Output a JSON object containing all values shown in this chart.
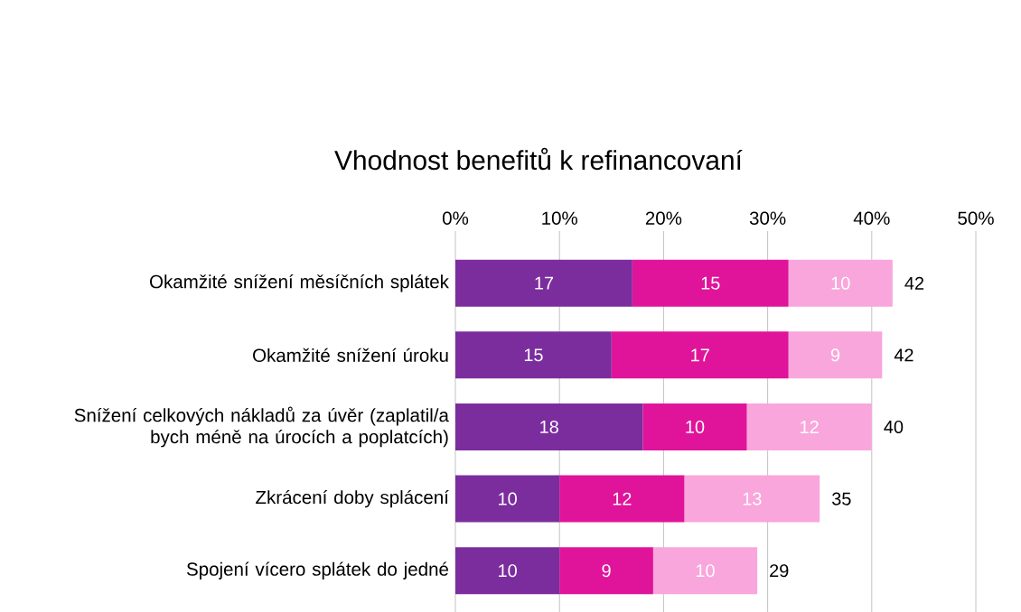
{
  "chart_data": {
    "type": "bar",
    "orientation": "horizontal",
    "stacked": true,
    "title": "Vhodnost benefitů k refinancovaní",
    "categories": [
      "Okamžité snížení měsíčních splátek",
      "Okamžité snížení úroku",
      "Snížení celkových nákladů za úvěr (zaplatil/a bych méně na úrocích a poplatcích)",
      "Zkrácení doby splácení",
      "Spojení vícero splátek do jedné"
    ],
    "series": [
      {
        "color": "#7b2d9e",
        "values": [
          17,
          15,
          18,
          10,
          10
        ]
      },
      {
        "color": "#e0149a",
        "values": [
          15,
          17,
          10,
          12,
          9
        ]
      },
      {
        "color": "#f9a6dc",
        "values": [
          10,
          9,
          12,
          13,
          10
        ]
      }
    ],
    "data_labels": true,
    "totals": [
      "42",
      "42",
      "40",
      "35",
      "29"
    ],
    "xlim": [
      0,
      50
    ],
    "xticks": [
      {
        "value": 0,
        "label": "0%"
      },
      {
        "value": 10,
        "label": "10%"
      },
      {
        "value": 20,
        "label": "20%"
      },
      {
        "value": 30,
        "label": "30%"
      },
      {
        "value": 40,
        "label": "40%"
      },
      {
        "value": 50,
        "label": "50%"
      }
    ],
    "grid": "x"
  }
}
